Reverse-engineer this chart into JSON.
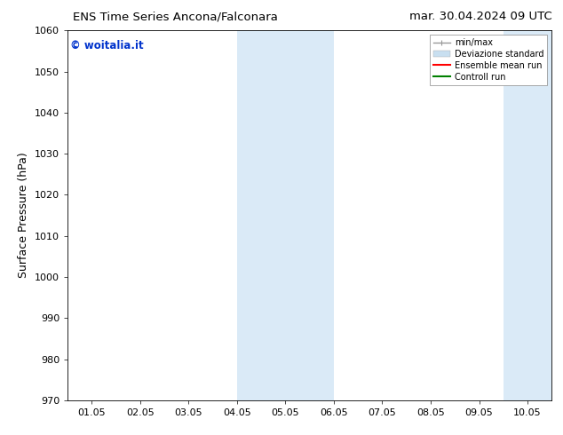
{
  "title_left": "ENS Time Series Ancona/Falconara",
  "title_right": "mar. 30.04.2024 09 UTC",
  "ylabel": "Surface Pressure (hPa)",
  "ylim": [
    970,
    1060
  ],
  "yticks": [
    970,
    980,
    990,
    1000,
    1010,
    1020,
    1030,
    1040,
    1050,
    1060
  ],
  "xtick_labels": [
    "01.05",
    "02.05",
    "03.05",
    "04.05",
    "05.05",
    "06.05",
    "07.05",
    "08.05",
    "09.05",
    "10.05"
  ],
  "xtick_positions": [
    0,
    1,
    2,
    3,
    4,
    5,
    6,
    7,
    8,
    9
  ],
  "xlim": [
    -0.5,
    9.5
  ],
  "shaded_regions": [
    {
      "xmin": 3.0,
      "xmax": 5.0,
      "color": "#daeaf7"
    },
    {
      "xmin": 8.5,
      "xmax": 9.5,
      "color": "#daeaf7"
    }
  ],
  "watermark_text": "© woitalia.it",
  "watermark_color": "#0033cc",
  "background_color": "#ffffff",
  "legend_entries": [
    {
      "label": "min/max",
      "color": "#999999",
      "lw": 1,
      "type": "line_with_caps"
    },
    {
      "label": "Deviazione standard",
      "color": "#c8dff0",
      "lw": 6,
      "type": "patch"
    },
    {
      "label": "Ensemble mean run",
      "color": "#ff0000",
      "lw": 1.5,
      "type": "line"
    },
    {
      "label": "Controll run",
      "color": "#008000",
      "lw": 1.5,
      "type": "line"
    }
  ],
  "title_fontsize": 9.5,
  "tick_fontsize": 8,
  "ylabel_fontsize": 9
}
